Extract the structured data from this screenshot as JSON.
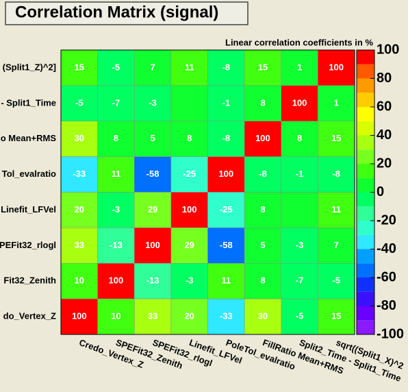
{
  "chart_data": {
    "type": "heatmap",
    "title": "Correlation Matrix (signal)",
    "subtitle": "Linear correlation coefficients in %",
    "x_categories": [
      "Credo_Vertex_Z",
      "SPEFit32_Zenith",
      "SPEFit32_rlogl",
      "Linefit_LFVel",
      "PoleTol_evalratio",
      "FillRatio Mean+RMS",
      "Split2_Time - Split1_Time",
      "sqrt((Split1_X)^2"
    ],
    "y_categories": [
      "(Split1_Z)^2]",
      "- Split1_Time",
      "o Mean+RMS",
      "Tol_evalratio",
      "Linefit_LFVel",
      "PEFit32_rlogl",
      "Fit32_Zenith",
      "do_Vertex_Z"
    ],
    "values": [
      [
        15,
        -5,
        7,
        11,
        -8,
        15,
        1,
        100
      ],
      [
        -5,
        -7,
        -3,
        0,
        -1,
        8,
        100,
        1
      ],
      [
        30,
        8,
        5,
        8,
        -8,
        100,
        8,
        15
      ],
      [
        -33,
        11,
        -58,
        -25,
        100,
        -8,
        -1,
        -8
      ],
      [
        20,
        -3,
        29,
        100,
        -25,
        8,
        0,
        11
      ],
      [
        33,
        -13,
        100,
        29,
        -58,
        5,
        -3,
        7
      ],
      [
        10,
        100,
        -13,
        -3,
        11,
        8,
        -7,
        -5
      ],
      [
        100,
        10,
        33,
        20,
        -33,
        30,
        -5,
        15
      ]
    ],
    "zlim": [
      -100,
      100
    ],
    "zticks": [
      -100,
      -80,
      -60,
      -40,
      -20,
      0,
      20,
      40,
      60,
      80,
      100
    ],
    "palette": [
      "#8a1aff",
      "#6a00ff",
      "#3a10ff",
      "#1030ff",
      "#0070ff",
      "#00a0ff",
      "#30e8ff",
      "#30ffcc",
      "#30ff99",
      "#00ff60",
      "#10ff30",
      "#40ff10",
      "#77ff20",
      "#a8ff10",
      "#d8ff00",
      "#ffff00",
      "#ffcc00",
      "#ff9a00",
      "#ff5a00",
      "#ff0000"
    ]
  }
}
